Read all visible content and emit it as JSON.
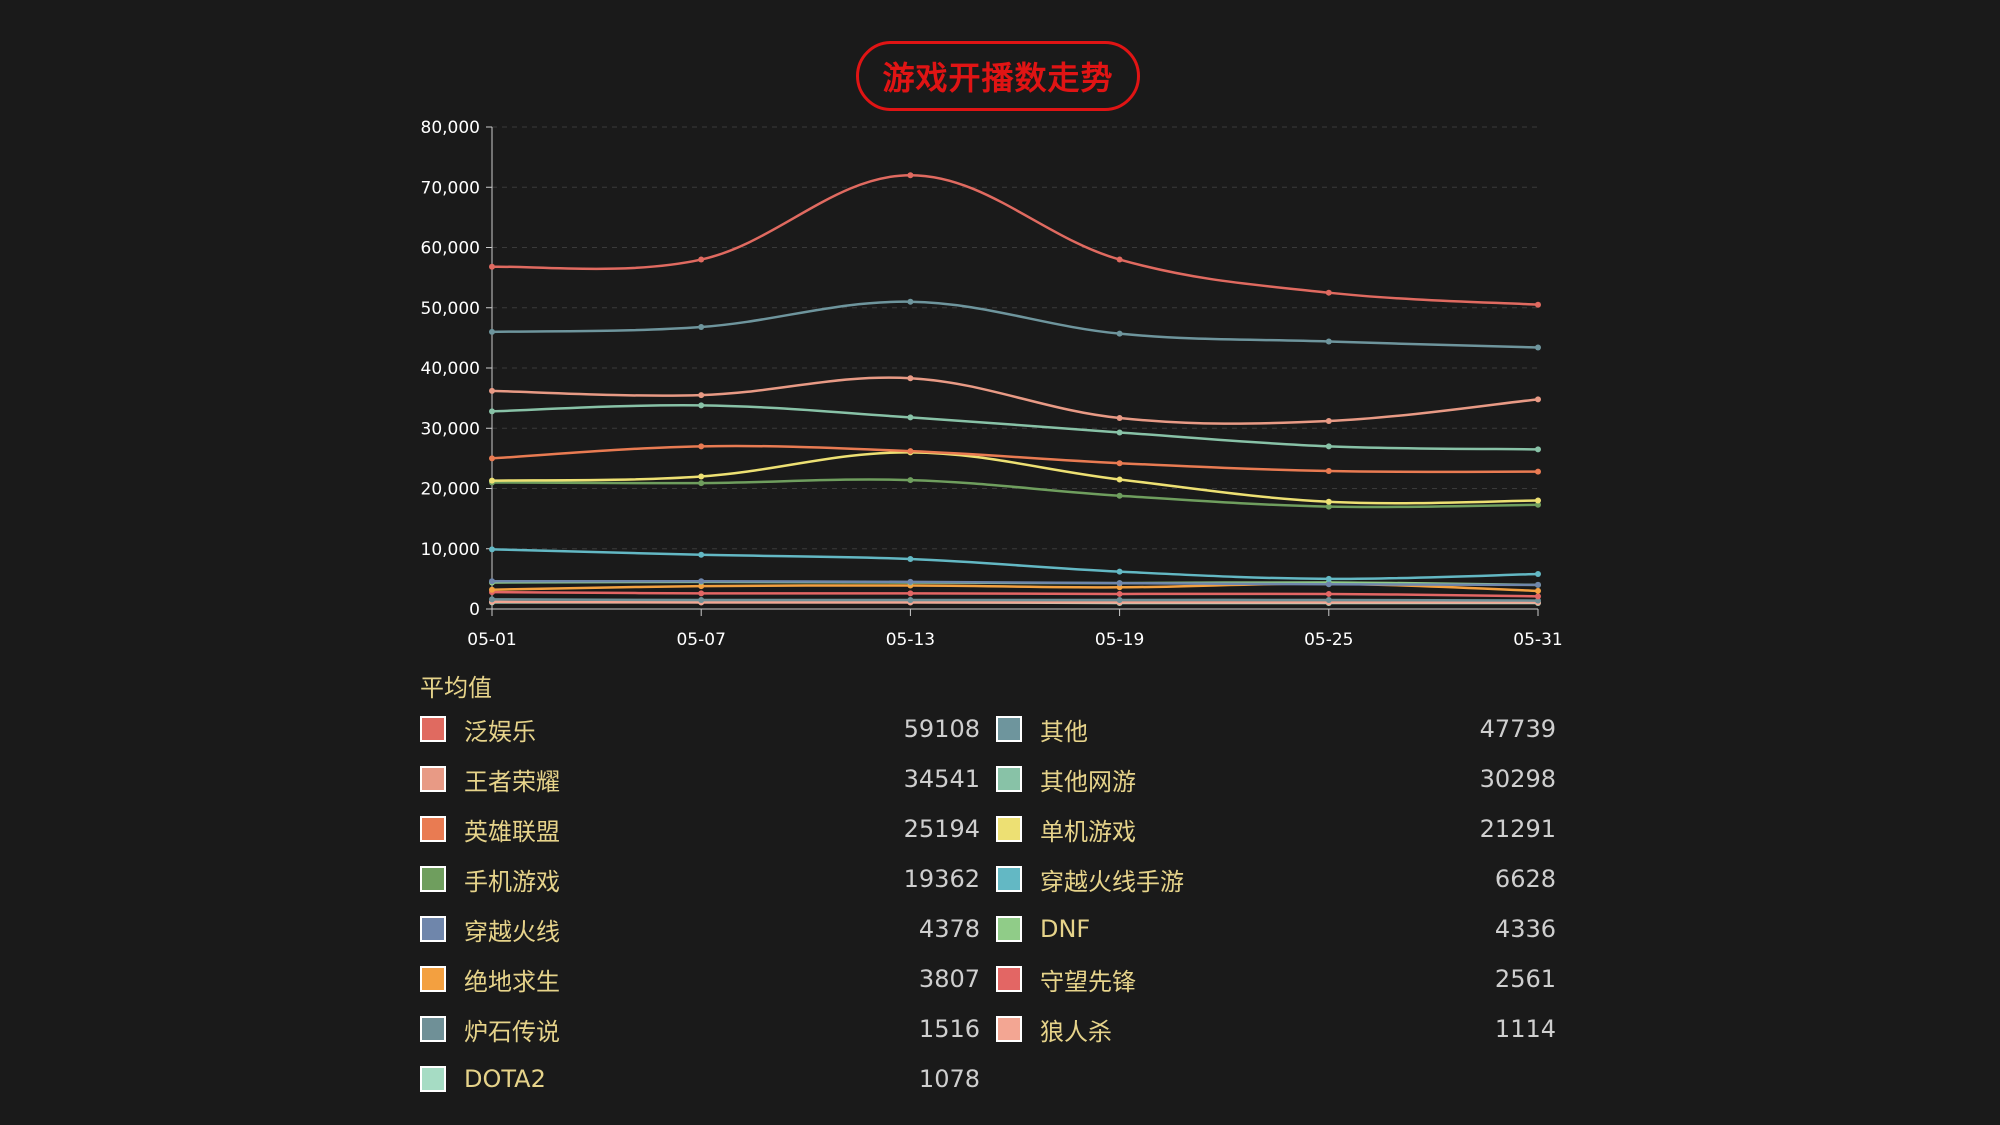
{
  "title": "游戏开播数走势",
  "avg_label": "平均值",
  "chart_data": {
    "type": "line",
    "title": "游戏开播数走势",
    "x": [
      "05-01",
      "05-07",
      "05-13",
      "05-19",
      "05-25",
      "05-31"
    ],
    "ylim": [
      0,
      80000
    ],
    "yticks": [
      0,
      10000,
      20000,
      30000,
      40000,
      50000,
      60000,
      70000,
      80000
    ],
    "ytick_labels": [
      "0",
      "10,000",
      "20,000",
      "30,000",
      "40,000",
      "50,000",
      "60,000",
      "70,000",
      "80,000"
    ],
    "grid": true,
    "series": [
      {
        "name": "泛娱乐",
        "color": "#e06a60",
        "avg": "59108",
        "values": [
          56800,
          58000,
          72000,
          58000,
          52500,
          50500
        ]
      },
      {
        "name": "其他",
        "color": "#6e959d",
        "avg": "47739",
        "values": [
          46000,
          46800,
          51000,
          45700,
          44400,
          43400
        ]
      },
      {
        "name": "王者荣耀",
        "color": "#e89a85",
        "avg": "34541",
        "values": [
          36200,
          35500,
          38300,
          31700,
          31200,
          34800
        ]
      },
      {
        "name": "其他网游",
        "color": "#88c2a7",
        "avg": "30298",
        "values": [
          32800,
          33800,
          31800,
          29300,
          27000,
          26500
        ]
      },
      {
        "name": "英雄联盟",
        "color": "#e97b52",
        "avg": "25194",
        "values": [
          25000,
          27000,
          26200,
          24200,
          22900,
          22800
        ]
      },
      {
        "name": "单机游戏",
        "color": "#ede073",
        "avg": "21291",
        "values": [
          21300,
          22000,
          26000,
          21500,
          17800,
          18000
        ]
      },
      {
        "name": "手机游戏",
        "color": "#6f9e5e",
        "avg": "19362",
        "values": [
          21000,
          20900,
          21400,
          18800,
          17000,
          17300
        ]
      },
      {
        "name": "穿越火线手游",
        "color": "#63b8c4",
        "avg": "6628",
        "values": [
          9900,
          9000,
          8300,
          6200,
          5000,
          5800
        ]
      },
      {
        "name": "穿越火线",
        "color": "#6f86ab",
        "avg": "4378",
        "values": [
          4600,
          4600,
          4500,
          4300,
          4100,
          4000
        ]
      },
      {
        "name": "DNF",
        "color": "#90cc88",
        "avg": "4336",
        "values": [
          4400,
          4500,
          4400,
          4300,
          4400,
          4000
        ]
      },
      {
        "name": "绝地求生",
        "color": "#f3a040",
        "avg": "3807",
        "values": [
          3200,
          3800,
          3900,
          3600,
          4200,
          3000
        ]
      },
      {
        "name": "守望先锋",
        "color": "#e36664",
        "avg": "2561",
        "values": [
          2800,
          2600,
          2600,
          2500,
          2500,
          2100
        ]
      },
      {
        "name": "炉石传说",
        "color": "#6f9097",
        "avg": "1516",
        "values": [
          1600,
          1500,
          1500,
          1500,
          1500,
          1400
        ]
      },
      {
        "name": "狼人杀",
        "color": "#f3a693",
        "avg": "1114",
        "values": [
          1200,
          1100,
          1100,
          1100,
          1100,
          1100
        ]
      },
      {
        "name": "DOTA2",
        "color": "#a6dcc4",
        "avg": "1078",
        "values": [
          1100,
          1100,
          1100,
          1000,
          1000,
          1000
        ]
      }
    ]
  },
  "legend_order": [
    "泛娱乐",
    "其他",
    "王者荣耀",
    "其他网游",
    "英雄联盟",
    "单机游戏",
    "手机游戏",
    "穿越火线手游",
    "穿越火线",
    "DNF",
    "绝地求生",
    "守望先锋",
    "炉石传说",
    "狼人杀",
    "DOTA2"
  ]
}
